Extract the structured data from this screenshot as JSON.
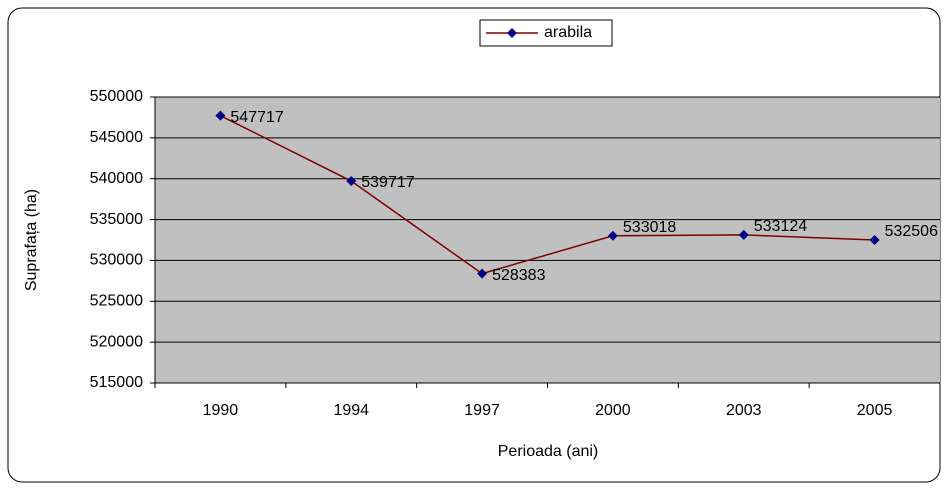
{
  "chart_data": {
    "type": "line",
    "categories": [
      "1990",
      "1994",
      "1997",
      "2000",
      "2003",
      "2005"
    ],
    "series": [
      {
        "name": "arabila",
        "color": "#800000",
        "marker_color": "#000080",
        "values": [
          547717,
          539717,
          528383,
          533018,
          533124,
          532506
        ]
      }
    ],
    "y_label": "Suprafața (ha)",
    "x_label": "Perioada (ani)",
    "ylim": [
      515000,
      550000
    ],
    "yticks": [
      515000,
      520000,
      525000,
      530000,
      535000,
      540000,
      545000,
      550000
    ],
    "grid": true,
    "legend": "top",
    "plot_background": "#c0c0c0",
    "data_labels": true
  }
}
